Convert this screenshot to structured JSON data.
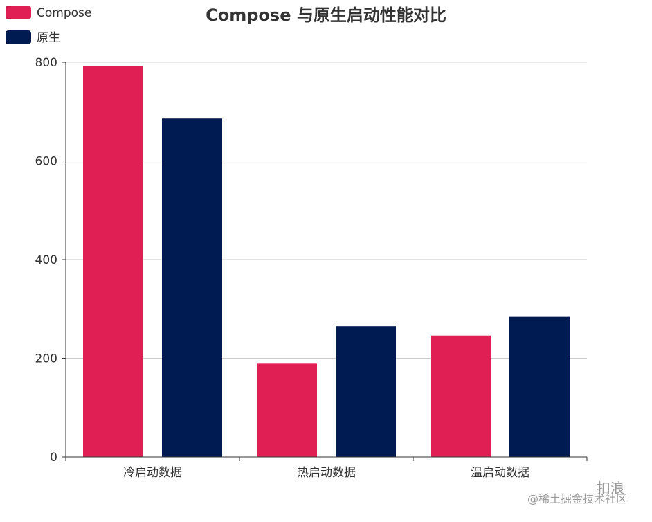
{
  "chart_data": {
    "type": "bar",
    "title": "Compose 与原生启动性能对比",
    "categories": [
      "冷启动数据",
      "热启动数据",
      "温启动数据"
    ],
    "series": [
      {
        "name": "Compose",
        "color": "#e02055",
        "values": [
          792,
          189,
          246
        ]
      },
      {
        "name": "原生",
        "color": "#001a52",
        "values": [
          686,
          265,
          284
        ]
      }
    ],
    "xlabel": "",
    "ylabel": "",
    "ylim": [
      0,
      800
    ],
    "yticks": [
      0,
      200,
      400,
      600,
      800
    ],
    "grid": true,
    "legend_position": "top-left"
  },
  "watermark": {
    "logo_text": "扣浪",
    "text": "@稀土掘金技术社区"
  }
}
